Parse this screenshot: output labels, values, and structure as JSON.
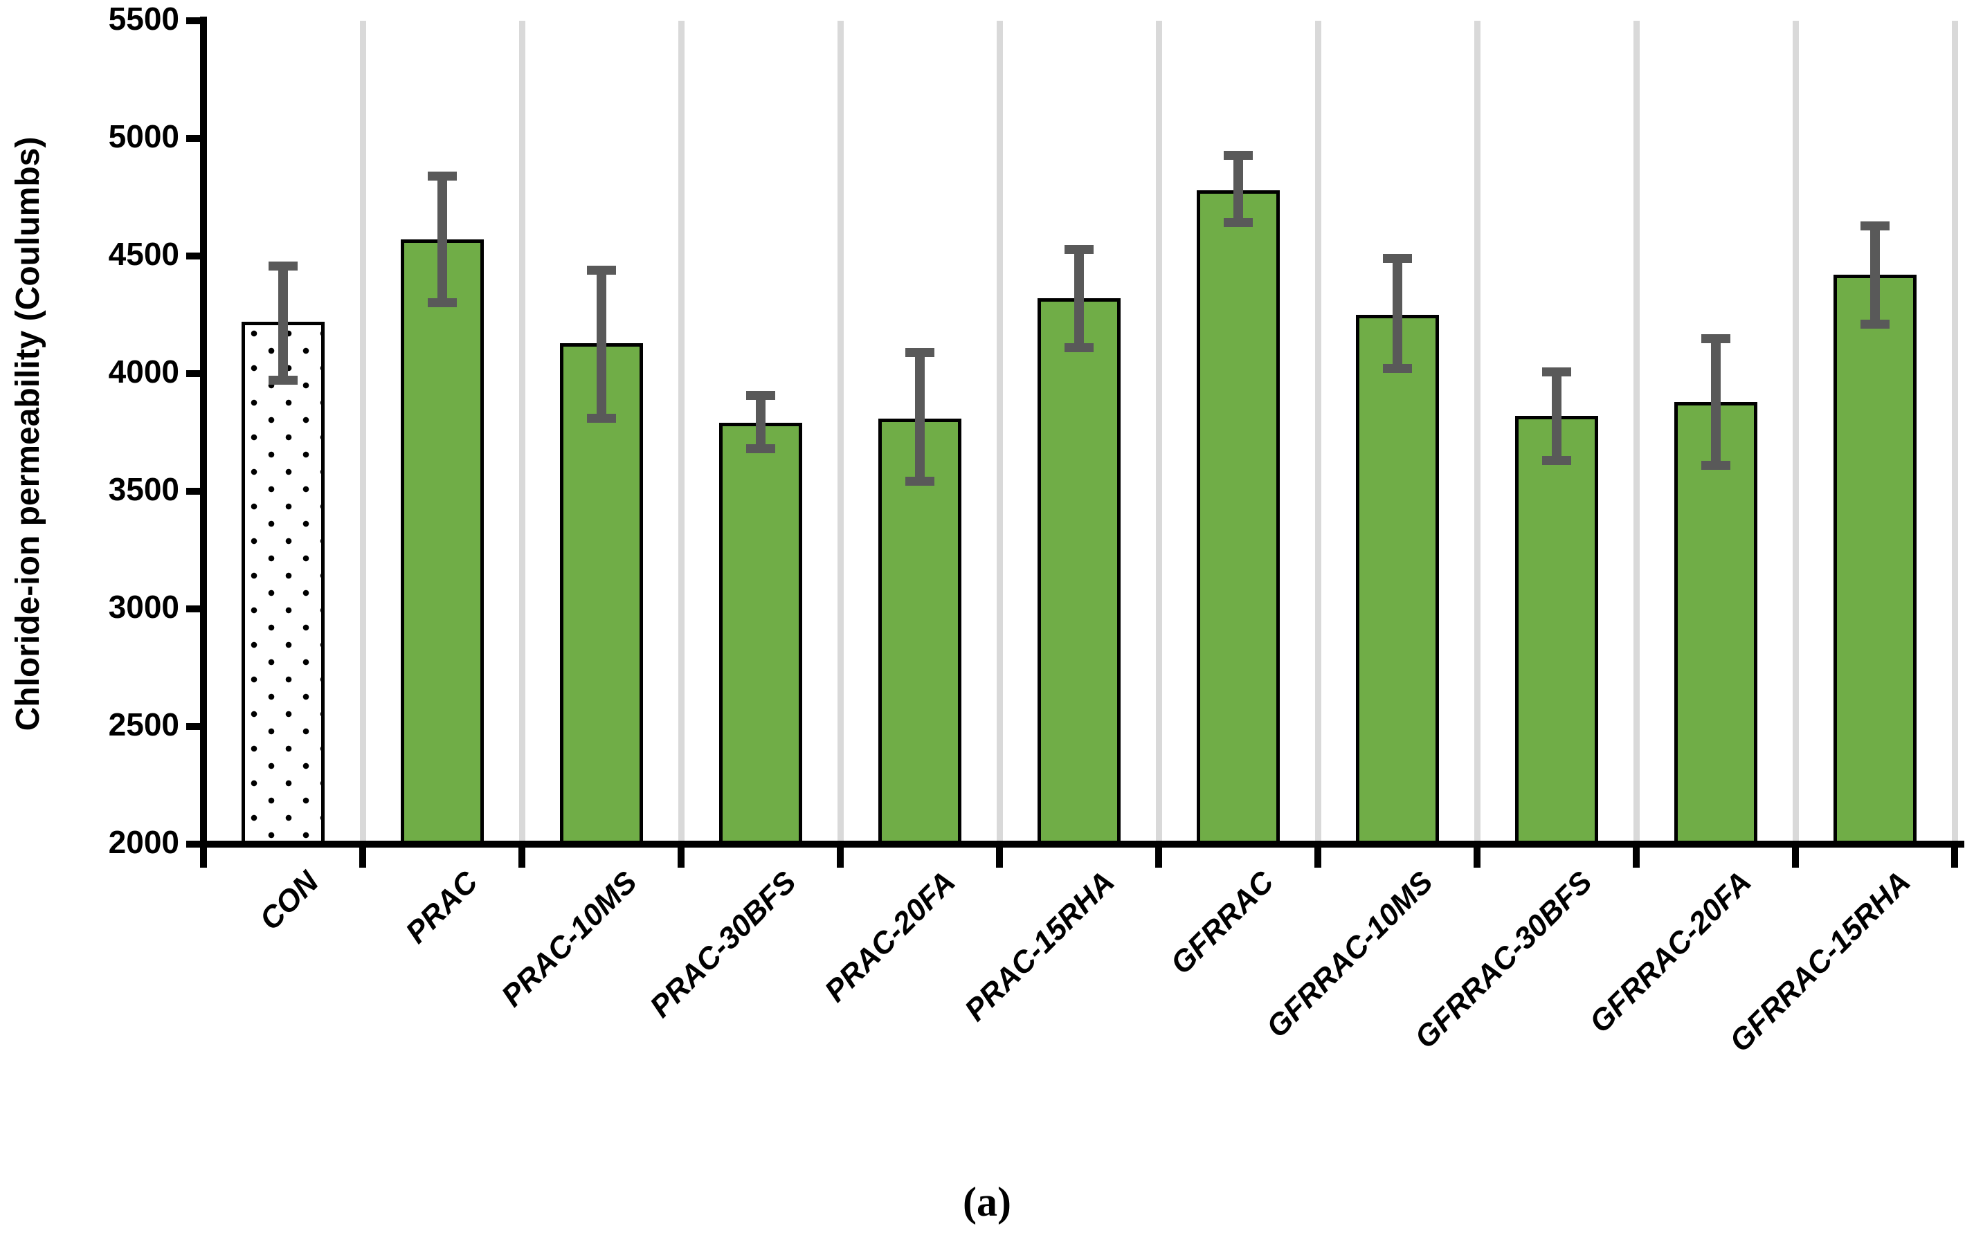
{
  "chart_data": {
    "type": "bar",
    "title": "",
    "ylabel": "Chloride-ion permeability (Coulumbs)",
    "xlabel": "",
    "caption": "(a)",
    "ylim": [
      2000,
      5500
    ],
    "ytick_step": 500,
    "yticks": [
      2000,
      2500,
      3000,
      3500,
      4000,
      4500,
      5000,
      5500
    ],
    "grid": "vertical-category-boundary-lines",
    "legend_position": "none",
    "categories": [
      "CON",
      "PRAC",
      "PRAC-10MS",
      "PRAC-30BFS",
      "PRAC-20FA",
      "PRAC-15RHA",
      "GFRRAC",
      "GFRRAC-10MS",
      "GFRRAC-30BFS",
      "GFRRAC-20FA",
      "GFRRAC-15RHA"
    ],
    "values": [
      4220,
      4570,
      4130,
      3790,
      3810,
      4320,
      4780,
      4250,
      3820,
      3880,
      4420
    ],
    "error_low": [
      3970,
      4300,
      3810,
      3680,
      3540,
      4110,
      4640,
      4020,
      3630,
      3610,
      4210
    ],
    "error_high": [
      4460,
      4840,
      4440,
      3910,
      4090,
      4530,
      4930,
      4490,
      4010,
      4150,
      4630
    ],
    "bar_styles": [
      "dotted",
      "solid",
      "solid",
      "solid",
      "solid",
      "solid",
      "solid",
      "solid",
      "solid",
      "solid",
      "solid"
    ],
    "colors": {
      "bar_fill": "#70AD47",
      "bar_border": "#000000",
      "control_bar_fill": "#FFFFFF",
      "control_bar_dot": "#000000",
      "error_bar": "#595959",
      "gridline": "#D9D9D9",
      "axis": "#000000",
      "background": "#FFFFFF"
    }
  }
}
